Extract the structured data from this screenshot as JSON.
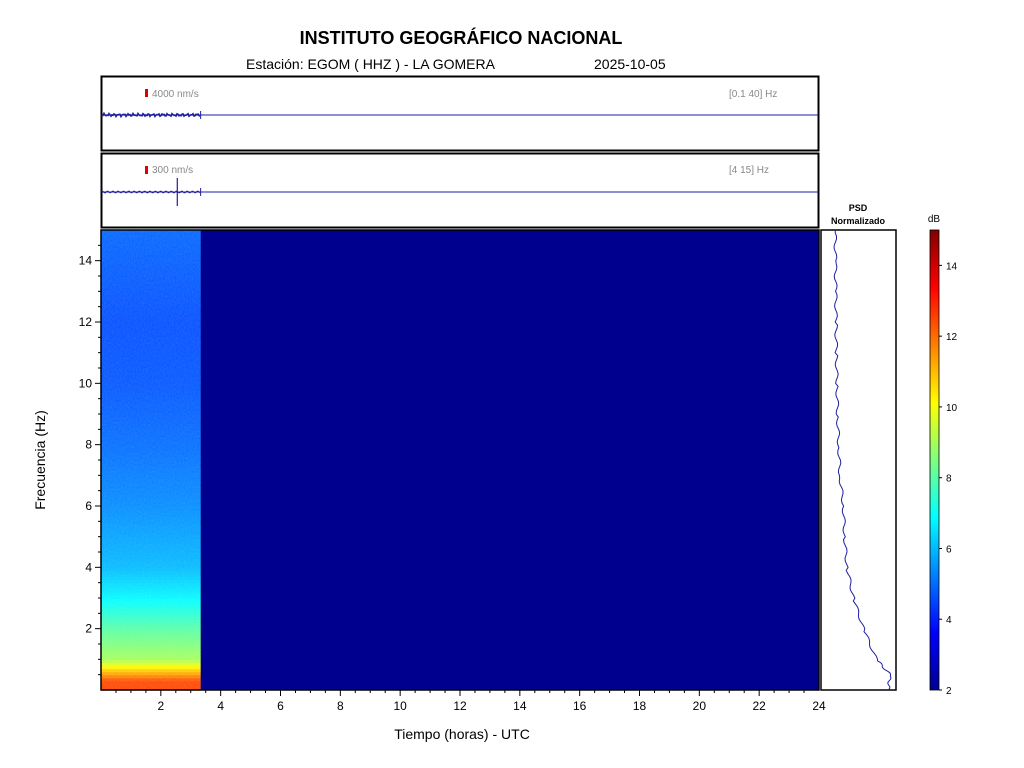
{
  "header": {
    "title": "INSTITUTO GEOGRÁFICO NACIONAL",
    "station_line": "Estación:  EGOM ( HHZ ) - LA GOMERA",
    "date": "2025-10-05"
  },
  "chart_data": [
    {
      "type": "line",
      "panel": "seismogram-broadband",
      "scale_label": "4000 nm/s",
      "band_label": "[0.1 40] Hz",
      "x": [
        0,
        3.33
      ],
      "signal_end_hours": 3.33,
      "xlim": [
        0,
        24
      ],
      "color": "#1f1fa0"
    },
    {
      "type": "line",
      "panel": "seismogram-filtered",
      "scale_label": "300 nm/s",
      "band_label": "[4 15] Hz",
      "x": [
        0,
        3.33
      ],
      "signal_end_hours": 3.33,
      "event_time_hours": 2.55,
      "xlim": [
        0,
        24
      ],
      "color": "#1f1fa0"
    },
    {
      "type": "heatmap",
      "panel": "spectrogram",
      "xlabel": "Tiempo (horas) - UTC",
      "ylabel": "Frecuencia  (Hz)",
      "xlim": [
        0,
        24
      ],
      "ylim": [
        0,
        15
      ],
      "x_ticks": [
        2,
        4,
        6,
        8,
        10,
        12,
        14,
        16,
        18,
        20,
        22,
        24
      ],
      "y_ticks": [
        2,
        4,
        6,
        8,
        10,
        12,
        14
      ],
      "data_end_hours": 3.33,
      "background_color": "#00008f",
      "frequency_profile_db": [
        {
          "f": 0.3,
          "db": 12.5
        },
        {
          "f": 1,
          "db": 9.0
        },
        {
          "f": 2,
          "db": 8.0
        },
        {
          "f": 3,
          "db": 6.8
        },
        {
          "f": 4,
          "db": 6.0
        },
        {
          "f": 6,
          "db": 5.4
        },
        {
          "f": 8,
          "db": 5.0
        },
        {
          "f": 10,
          "db": 4.7
        },
        {
          "f": 12,
          "db": 4.6
        },
        {
          "f": 14,
          "db": 4.8
        },
        {
          "f": 15,
          "db": 4.9
        }
      ]
    },
    {
      "type": "line",
      "panel": "psd",
      "title_line1": "PSD",
      "title_line2": "Normalizado",
      "y_frequency_hz": [
        0,
        0.5,
        1,
        2,
        3,
        4,
        5,
        6,
        7,
        8,
        9,
        10,
        11,
        12,
        13,
        14,
        15
      ],
      "psd_normalized": [
        0.92,
        0.95,
        0.72,
        0.5,
        0.33,
        0.22,
        0.18,
        0.16,
        0.1,
        0.08,
        0.06,
        0.05,
        0.04,
        0.035,
        0.03,
        0.025,
        0.02
      ],
      "color": "#1f1fa0"
    },
    {
      "type": "colorbar",
      "panel": "colorbar",
      "unit_label": "dB",
      "range": [
        2,
        15
      ],
      "ticks": [
        2,
        4,
        6,
        8,
        10,
        12,
        14
      ]
    }
  ]
}
